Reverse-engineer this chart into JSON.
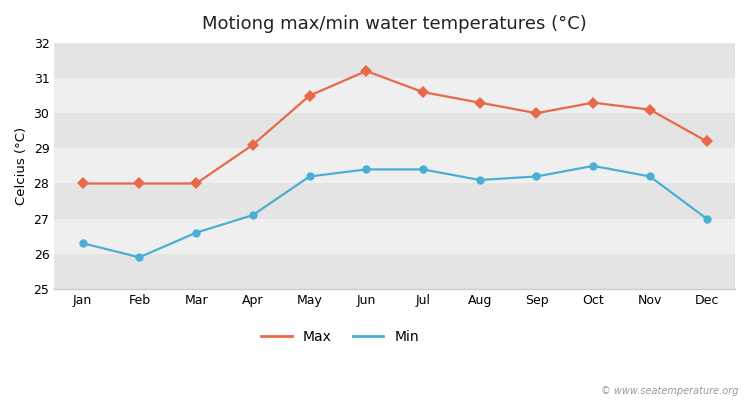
{
  "title": "Motiong max/min water temperatures (°C)",
  "ylabel": "Celcius (°C)",
  "months": [
    "Jan",
    "Feb",
    "Mar",
    "Apr",
    "May",
    "Jun",
    "Jul",
    "Aug",
    "Sep",
    "Oct",
    "Nov",
    "Dec"
  ],
  "max_temps": [
    28.0,
    28.0,
    28.0,
    29.1,
    30.5,
    31.2,
    30.6,
    30.3,
    30.0,
    30.3,
    30.1,
    29.2
  ],
  "min_temps": [
    26.3,
    25.9,
    26.6,
    27.1,
    28.2,
    28.4,
    28.4,
    28.1,
    28.2,
    28.5,
    28.2,
    27.0
  ],
  "max_color": "#e8694a",
  "min_color": "#4bafd4",
  "figure_bg": "#ffffff",
  "plot_bg": "#f5f5f5",
  "band_color_light": "#efefef",
  "band_color_dark": "#e4e4e4",
  "ylim": [
    25,
    32
  ],
  "yticks": [
    25,
    26,
    27,
    28,
    29,
    30,
    31,
    32
  ],
  "legend_labels": [
    "Max",
    "Min"
  ],
  "watermark": "© www.seatemperature.org",
  "title_fontsize": 13,
  "axis_fontsize": 9.5,
  "tick_fontsize": 9,
  "legend_fontsize": 10,
  "line_width": 1.6,
  "max_marker": "D",
  "min_marker": "o",
  "marker_size": 6
}
